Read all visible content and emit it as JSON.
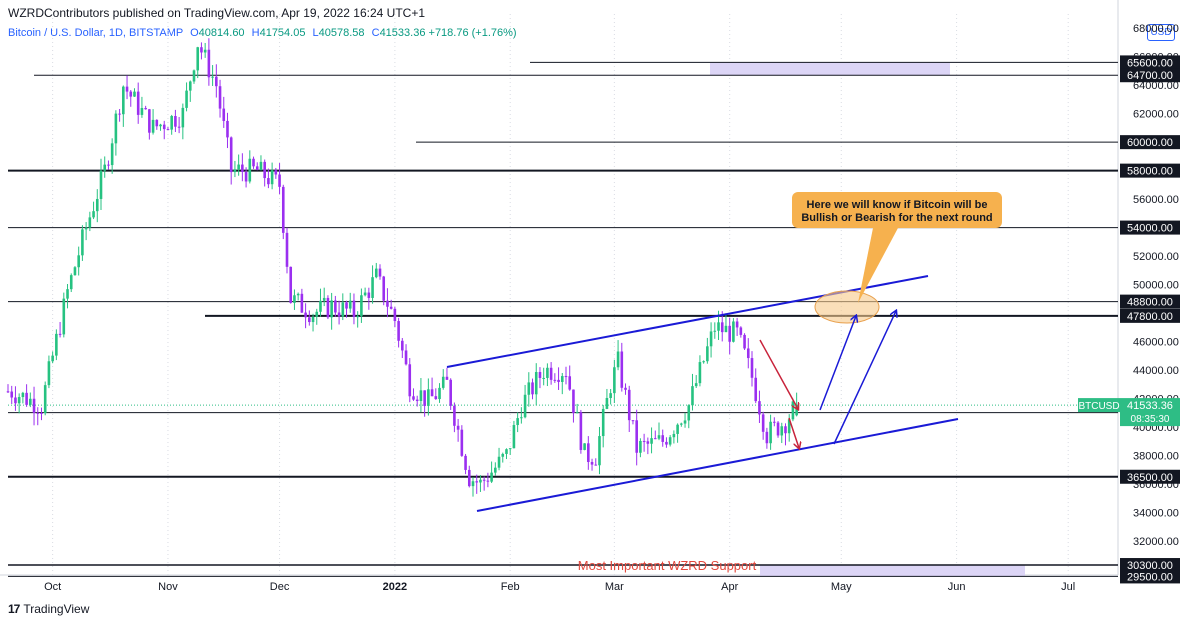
{
  "header": {
    "published": "WZRDContributors published on TradingView.com, Apr 19, 2022 16:24 UTC+1"
  },
  "legend": {
    "symbol": "Bitcoin / U.S. Dollar, 1D, BITSTAMP",
    "open_label": "O",
    "open": "40814.60",
    "high_label": "H",
    "high": "41754.05",
    "low_label": "L",
    "low": "40578.58",
    "close_label": "C",
    "close": "41533.36",
    "change": "+718.76 (+1.76%)"
  },
  "currency_button": "USD",
  "footer": {
    "brand": "TradingView"
  },
  "colors": {
    "up": "#26c281",
    "down": "#9b2ff0",
    "channel": "#1a1ad6",
    "callout_bg": "#f6b14e",
    "zone": "#dcd5f6",
    "ellipse": "#f6c98a",
    "price_tag": "#2ebd85",
    "arrow_red": "#c8233b"
  },
  "chart_data": {
    "type": "candlestick",
    "x_ticks": [
      "Oct",
      "Nov",
      "Dec",
      "2022",
      "Feb",
      "Mar",
      "Apr",
      "May",
      "Jun",
      "Jul"
    ],
    "y_ticks": [
      32000,
      34000,
      36000,
      38000,
      40000,
      42000,
      44000,
      46000,
      48000,
      50000,
      52000,
      54000,
      56000,
      58000,
      60000,
      62000,
      64000,
      66000,
      68000
    ],
    "ylim": [
      29600,
      69000
    ],
    "levels": [
      {
        "label": "65600.00",
        "value": 65600
      },
      {
        "label": "64700.00",
        "value": 64700
      },
      {
        "label": "60000.00",
        "value": 60000
      },
      {
        "label": "58000.00",
        "value": 58000
      },
      {
        "label": "54000.00",
        "value": 54000
      },
      {
        "label": "48800.00",
        "value": 48800
      },
      {
        "label": "47800.00",
        "value": 47800
      },
      {
        "label": "41000.00",
        "value": 41000
      },
      {
        "label": "36500.00",
        "value": 36500
      },
      {
        "label": "30300.00",
        "value": 30300
      },
      {
        "label": "29500.00",
        "value": 29500
      }
    ],
    "current_price": {
      "symbol": "BTCUSD",
      "price": "41533.36",
      "countdown": "08:35:30",
      "value": 41533
    },
    "callout": {
      "line1": "Here we will know if Bitcoin will be",
      "line2": "Bullish or Bearish for the next round"
    },
    "support_label": "Most Important WZRD Support",
    "anchors": [
      [
        "2021-09-20",
        42500
      ],
      [
        "2021-09-28",
        41500
      ],
      [
        "2021-10-05",
        49500
      ],
      [
        "2021-10-10",
        54000
      ],
      [
        "2021-10-15",
        58000
      ],
      [
        "2021-10-20",
        64000
      ],
      [
        "2021-10-28",
        61000
      ],
      [
        "2021-11-05",
        62000
      ],
      [
        "2021-11-09",
        67000
      ],
      [
        "2021-11-14",
        64000
      ],
      [
        "2021-11-18",
        58000
      ],
      [
        "2021-11-25",
        58000
      ],
      [
        "2021-12-01",
        57000
      ],
      [
        "2021-12-04",
        49000
      ],
      [
        "2021-12-10",
        48000
      ],
      [
        "2021-12-15",
        48500
      ],
      [
        "2021-12-21",
        48000
      ],
      [
        "2021-12-27",
        50500
      ],
      [
        "2022-01-01",
        47500
      ],
      [
        "2022-01-05",
        43000
      ],
      [
        "2022-01-10",
        41800
      ],
      [
        "2022-01-15",
        43000
      ],
      [
        "2022-01-21",
        36500
      ],
      [
        "2022-01-24",
        36000
      ],
      [
        "2022-01-31",
        38000
      ],
      [
        "2022-02-04",
        41500
      ],
      [
        "2022-02-10",
        44000
      ],
      [
        "2022-02-16",
        44000
      ],
      [
        "2022-02-21",
        38000
      ],
      [
        "2022-02-24",
        38000
      ],
      [
        "2022-02-28",
        43000
      ],
      [
        "2022-03-02",
        44500
      ],
      [
        "2022-03-07",
        38500
      ],
      [
        "2022-03-14",
        39000
      ],
      [
        "2022-03-21",
        41500
      ],
      [
        "2022-03-28",
        47000
      ],
      [
        "2022-04-03",
        46500
      ],
      [
        "2022-04-07",
        43500
      ],
      [
        "2022-04-11",
        39500
      ],
      [
        "2022-04-16",
        40400
      ],
      [
        "2022-04-19",
        41533
      ]
    ]
  }
}
